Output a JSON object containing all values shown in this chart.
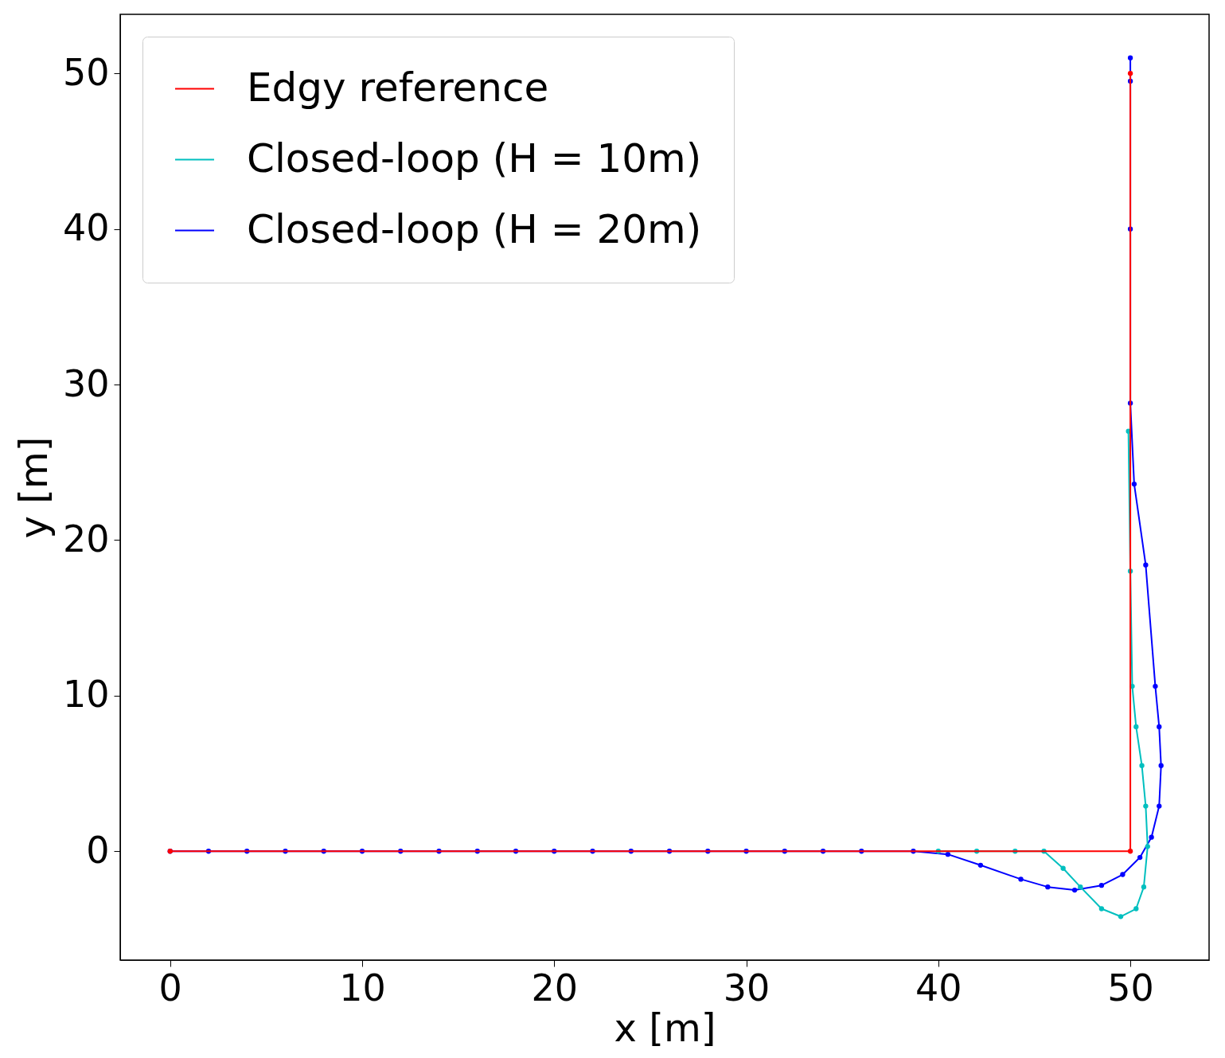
{
  "chart_data": {
    "type": "line",
    "xlabel": "x [m]",
    "ylabel": "y [m]",
    "xlim": [
      -2.6,
      54.1
    ],
    "ylim": [
      -7,
      53.8
    ],
    "xticks": [
      0,
      10,
      20,
      30,
      40,
      50
    ],
    "yticks": [
      0,
      10,
      20,
      30,
      40,
      50
    ],
    "grid": false,
    "legend": "top left",
    "marker": "circle",
    "line_style": "solid",
    "series": [
      {
        "name": "Edgy reference",
        "color": "#ff0000",
        "x": [
          0,
          50,
          50
        ],
        "values": [
          0,
          0,
          50
        ]
      },
      {
        "name": "Closed-loop (H = 10m)",
        "color": "#00bfbf",
        "x": [
          40,
          42,
          44,
          45.5,
          46.5,
          47.4,
          48.5,
          49.5,
          50.3,
          50.7,
          50.9,
          50.8,
          50.6,
          50.3,
          50.1,
          50,
          49.9
        ],
        "values": [
          0,
          0,
          0,
          0,
          -1.1,
          -2.3,
          -3.7,
          -4.2,
          -3.7,
          -2.3,
          0.3,
          2.9,
          5.5,
          8.0,
          10.6,
          18,
          27
        ]
      },
      {
        "name": "Closed-loop (H = 20m)",
        "color": "#0000ff",
        "x": [
          0,
          2,
          4,
          6,
          8,
          10,
          12,
          14,
          16,
          18,
          20,
          22,
          24,
          26,
          28,
          30,
          32,
          34,
          36,
          38.7,
          40.5,
          42.2,
          44.3,
          45.7,
          47.1,
          48.5,
          49.6,
          50.5,
          51.1,
          51.5,
          51.6,
          51.5,
          51.3,
          50.8,
          50.2,
          50,
          50,
          50,
          50
        ],
        "values": [
          0,
          0,
          0,
          0,
          0,
          0,
          0,
          0,
          0,
          0,
          0,
          0,
          0,
          0,
          0,
          0,
          0,
          0,
          0,
          0,
          -0.2,
          -0.9,
          -1.8,
          -2.3,
          -2.5,
          -2.2,
          -1.5,
          -0.4,
          0.9,
          2.9,
          5.5,
          8.0,
          10.6,
          18.4,
          23.6,
          28.8,
          40,
          49.5,
          51
        ]
      }
    ]
  }
}
